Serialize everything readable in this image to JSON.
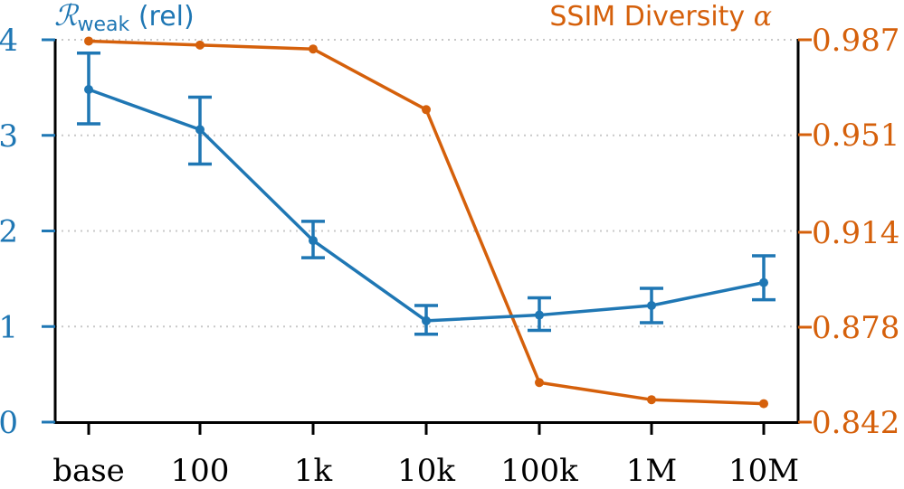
{
  "chart_data": {
    "type": "line",
    "categories": [
      "base",
      "100",
      "1k",
      "10k",
      "100k",
      "1M",
      "10M"
    ],
    "left_axis": {
      "title_symbol": "ℛ",
      "title_subscript": "weak",
      "title_suffix": " (rel)",
      "ylim": [
        0,
        4
      ],
      "ticks": [
        0,
        1,
        2,
        3,
        4
      ],
      "tick_labels": [
        "0",
        "1",
        "2",
        "3",
        "4"
      ],
      "color": "#1f77b4"
    },
    "right_axis": {
      "title_text": "SSIM Diversity ",
      "title_symbol": "α",
      "ylim": [
        0.842,
        0.987
      ],
      "ticks": [
        0.842,
        0.878,
        0.914,
        0.951,
        0.987
      ],
      "tick_labels": [
        "0.842",
        "0.878",
        "0.914",
        "0.951",
        "0.987"
      ],
      "color": "#d5600b"
    },
    "series": [
      {
        "name": "R_weak (rel)",
        "axis": "left",
        "color": "#1f77b4",
        "values": [
          3.48,
          3.06,
          1.9,
          1.06,
          1.12,
          1.22,
          1.46
        ],
        "err_low": [
          3.12,
          2.7,
          1.72,
          0.92,
          0.96,
          1.04,
          1.28
        ],
        "err_high": [
          3.86,
          3.4,
          2.1,
          1.22,
          1.3,
          1.4,
          1.74
        ]
      },
      {
        "name": "SSIM Diversity alpha",
        "axis": "right",
        "color": "#d5600b",
        "values": [
          0.9865,
          0.985,
          0.9835,
          0.9605,
          0.857,
          0.8505,
          0.849
        ]
      }
    ],
    "grid": "horizontal dotted"
  }
}
